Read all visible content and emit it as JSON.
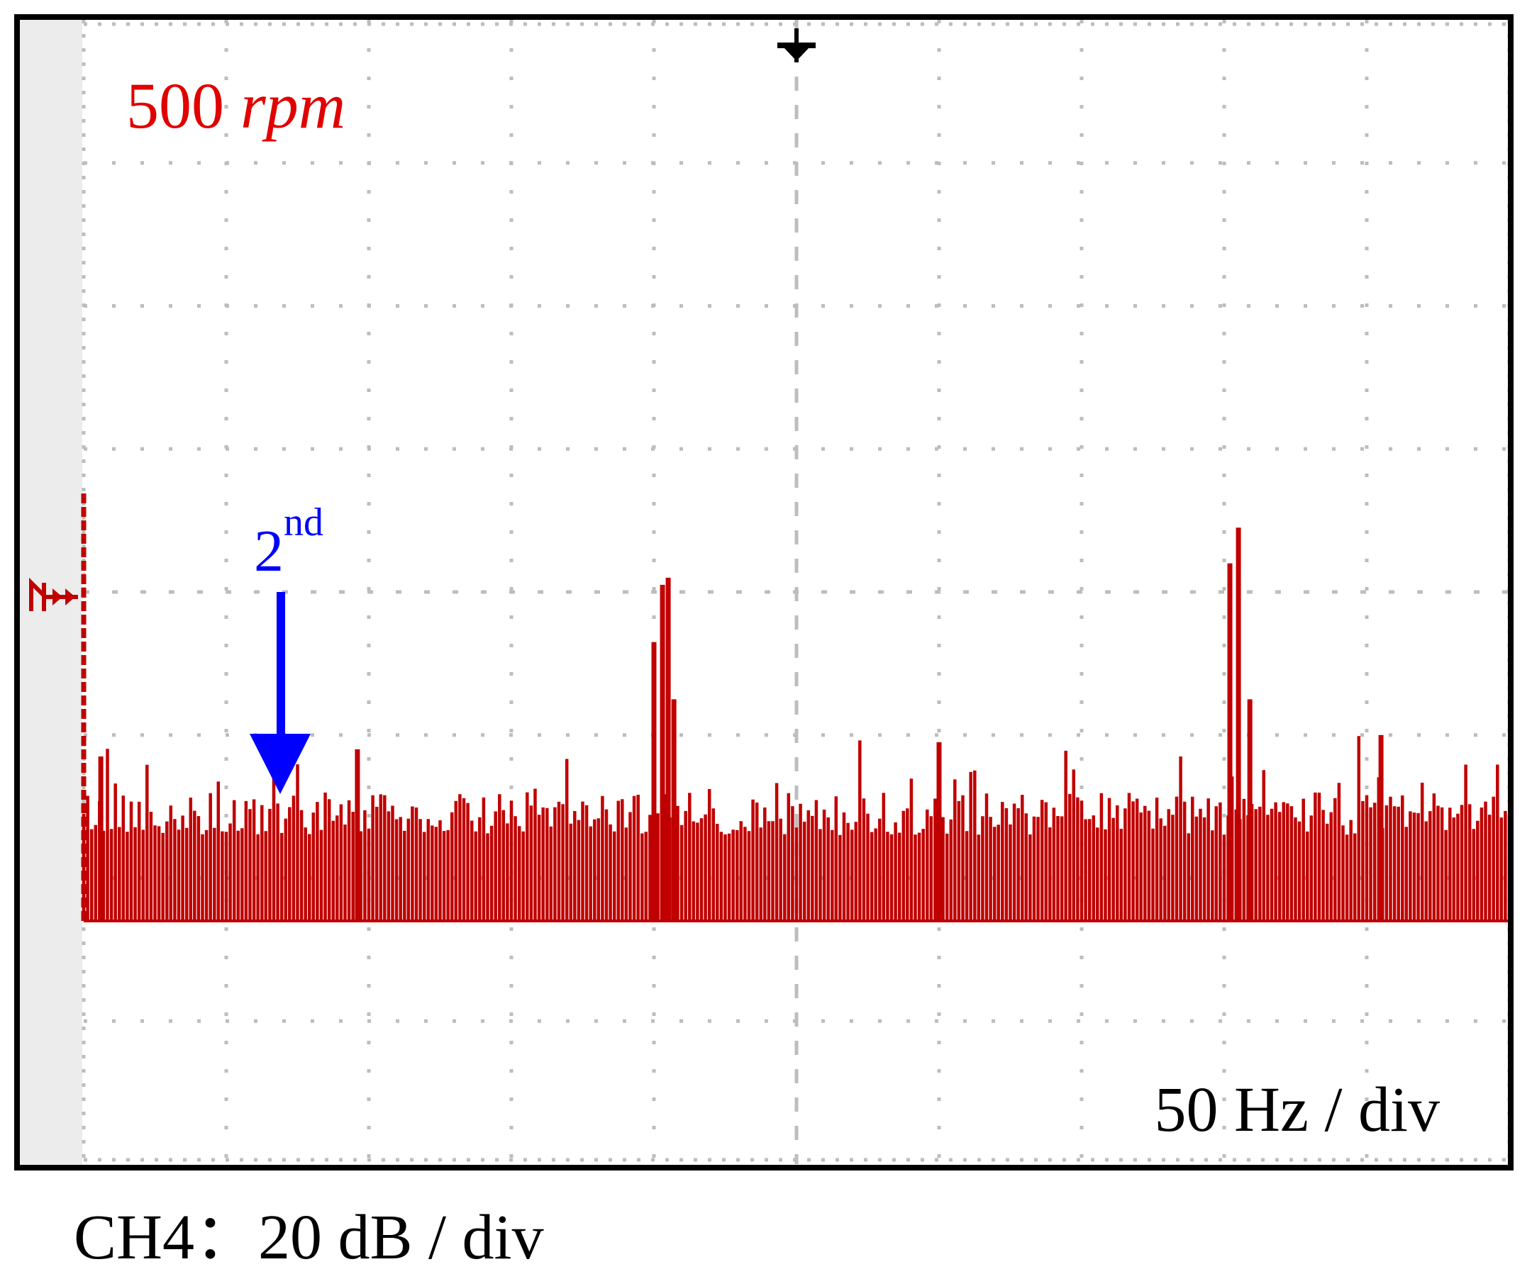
{
  "screen": {
    "speed_value": "500",
    "speed_unit": "rpm",
    "harmonic_number": "2",
    "harmonic_suffix": "nd",
    "freq_scale": "50 Hz / div",
    "channel_scale": "CH4：20 dB / div"
  },
  "colors": {
    "trace": "#c00000",
    "arrow": "#0000ff",
    "grid": "#bdbdbd",
    "frame": "#000000",
    "left_strip": "#ececec",
    "text": "#000000"
  },
  "icons": {
    "trigger_marker": "trigger-marker-icon",
    "channel_marker": "channel-ground-marker-icon"
  },
  "chart_data": {
    "type": "line",
    "x_unit": "Hz",
    "y_unit": "dB",
    "x_per_div": 50,
    "y_per_div": 20,
    "x_divisions": 10,
    "y_divisions": 8,
    "xlim": [
      0,
      500
    ],
    "ylim": [
      -100,
      60
    ],
    "grid": true,
    "title": "",
    "xlabel": "",
    "ylabel": "",
    "noise_floor": [
      -54,
      -48
    ],
    "peaks": [
      {
        "x": 0,
        "y": -6
      },
      {
        "x": 6,
        "y": -43
      },
      {
        "x": 96,
        "y": -42
      },
      {
        "x": 200,
        "y": -27
      },
      {
        "x": 203,
        "y": -19
      },
      {
        "x": 205,
        "y": -18
      },
      {
        "x": 207,
        "y": -35
      },
      {
        "x": 300,
        "y": -41
      },
      {
        "x": 402,
        "y": -16
      },
      {
        "x": 405,
        "y": -11
      },
      {
        "x": 409,
        "y": -35
      },
      {
        "x": 455,
        "y": -40
      }
    ],
    "annotation": {
      "text": "2nd",
      "x": 70
    }
  }
}
